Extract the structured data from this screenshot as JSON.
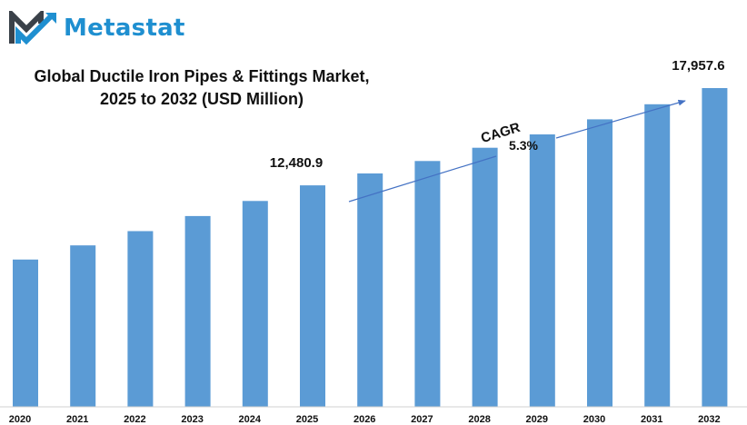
{
  "brand": {
    "logo_text": "Metastat",
    "accent": "#1f8fd0",
    "dark": "#3a4149"
  },
  "chart_data": {
    "type": "bar",
    "title": "Global Ductile Iron Pipes & Fittings Market, 2025 to 2032 (USD Million)",
    "title_lines": [
      "Global Ductile Iron Pipes & Fittings Market,",
      "2025 to 2032 (USD Million)"
    ],
    "categories": [
      "2020",
      "2021",
      "2022",
      "2023",
      "2024",
      "2025",
      "2026",
      "2027",
      "2028",
      "2029",
      "2030",
      "2031",
      "2032"
    ],
    "values": [
      8300,
      9100,
      9900,
      10750,
      11600,
      12480.9,
      13150,
      13850,
      14600,
      15350,
      16200,
      17050,
      17957.6
    ],
    "ylim": [
      0,
      21900
    ],
    "bar_color": "#5b9bd5",
    "annotations": [
      {
        "category": "2025",
        "text": "12,480.9"
      },
      {
        "category": "2032",
        "text": "17,957.6"
      }
    ],
    "cagr": {
      "label": "CAGR",
      "value": "5.3%"
    }
  }
}
